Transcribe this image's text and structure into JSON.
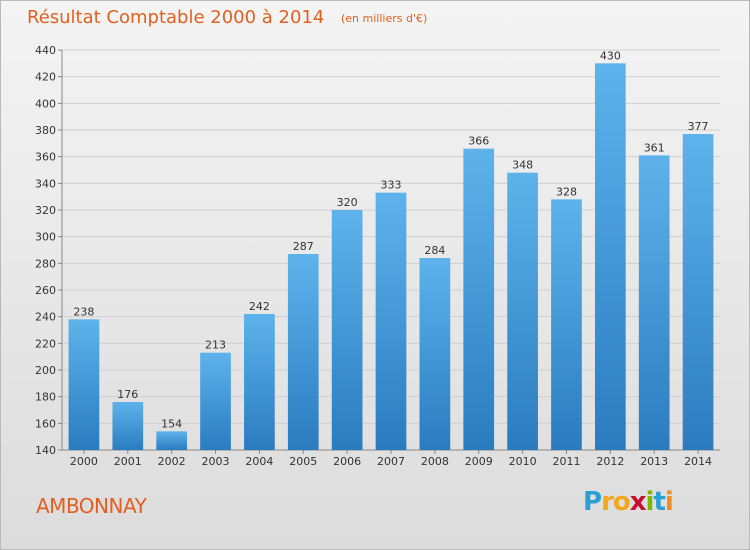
{
  "chart_data": {
    "type": "bar",
    "title": "Résultat Comptable 2000 à 2014",
    "subtitle": "(en milliers d'€)",
    "categories": [
      "2000",
      "2001",
      "2002",
      "2003",
      "2004",
      "2005",
      "2006",
      "2007",
      "2008",
      "2009",
      "2010",
      "2011",
      "2012",
      "2013",
      "2014"
    ],
    "values": [
      238,
      176,
      154,
      213,
      242,
      287,
      320,
      333,
      284,
      366,
      348,
      328,
      430,
      361,
      377
    ],
    "ylim": [
      140,
      440
    ],
    "ystep": 20,
    "grid": true,
    "xlabel": "",
    "ylabel": "",
    "bar_color": "#3a8fd0"
  },
  "commune": "AMBONNAY",
  "brand": {
    "p": "P",
    "r": "r",
    "o": "o",
    "x": "x",
    "i1": "i",
    "t": "t",
    "i2": "i"
  }
}
